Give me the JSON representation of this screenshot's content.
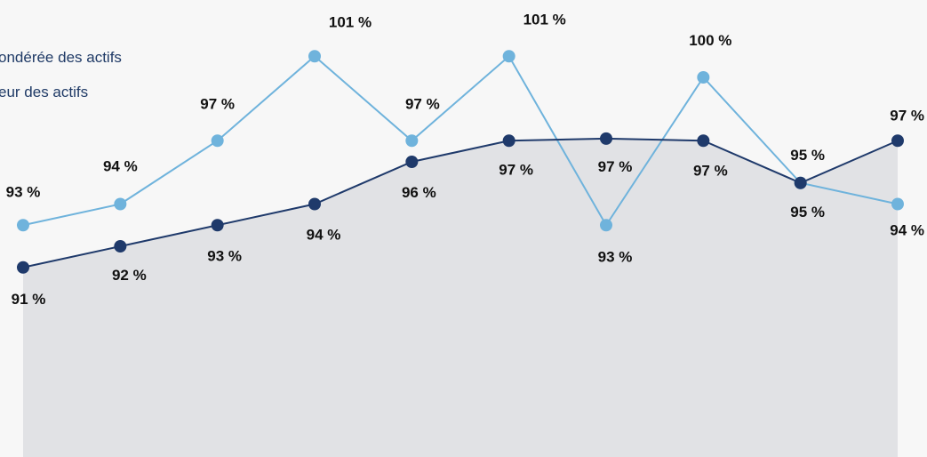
{
  "chart_data": {
    "type": "line",
    "categories": [
      "",
      "",
      "",
      "",
      "",
      "",
      "",
      "",
      "",
      ""
    ],
    "series": [
      {
        "name": "ondérée des actifs",
        "color": "#6fb3dc",
        "values": [
          93,
          94,
          97,
          101,
          97,
          101,
          93,
          100,
          95,
          94
        ],
        "labels": [
          "93 %",
          "94 %",
          "97 %",
          "101 %",
          "97 %",
          "101 %",
          "93 %",
          "100 %",
          "95 %",
          "94 %"
        ]
      },
      {
        "name": "eur des actifs",
        "color": "#1f3a6b",
        "area": true,
        "area_color": "#e1e2e5",
        "values": [
          91,
          92,
          93,
          94,
          96,
          97,
          97.1,
          97,
          95,
          97
        ],
        "labels": [
          "91 %",
          "92 %",
          "93 %",
          "94 %",
          "96 %",
          "97 %",
          "97 %",
          "97 %",
          "95 %",
          "97 %"
        ]
      }
    ],
    "ylim": [
      75,
      104
    ],
    "grid": false,
    "legend_position": "top-left",
    "title": "",
    "xlabel": "",
    "ylabel": ""
  }
}
